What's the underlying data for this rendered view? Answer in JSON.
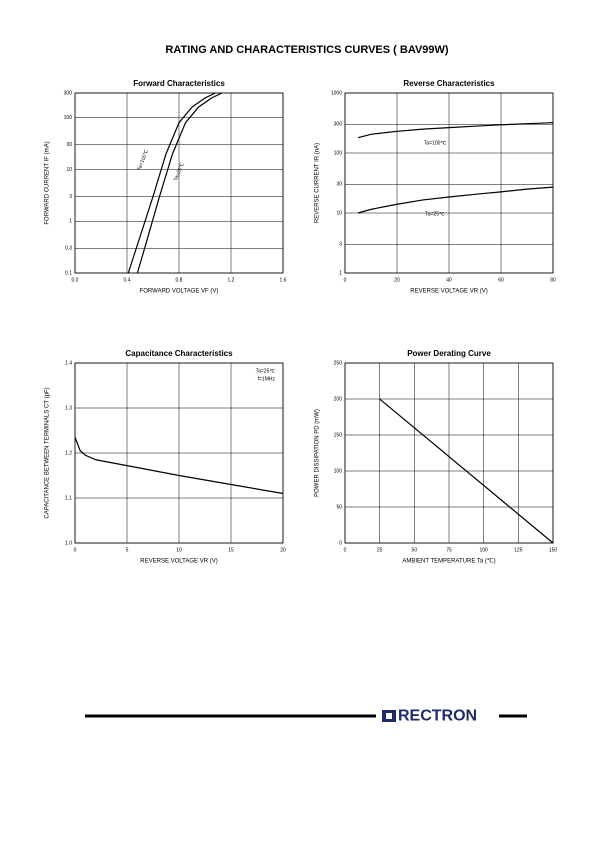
{
  "title": "RATING AND CHARACTERISTICS CURVES ( BAV99W)",
  "footer": {
    "brand": "RECTRON"
  },
  "chart_data": [
    {
      "type": "line",
      "title": "Forward    Characteristics",
      "xlabel": "FORWARD VOLTAGE    VF    (V)",
      "ylabel": "FORWARD CURRENT    IF    (mA)",
      "xlim": [
        0,
        1.6
      ],
      "ylim": [
        0.1,
        300
      ],
      "yscale": "log",
      "grid": true,
      "xticks": [
        {
          "value": 0,
          "label": "0.0"
        },
        0.4,
        0.8,
        1.2,
        1.6
      ],
      "yticks": [
        0.1,
        0.3,
        1,
        3,
        10,
        30,
        100,
        300
      ],
      "series": [
        {
          "name": "Ta=100℃",
          "color": "#000000",
          "x": [
            0.41,
            0.5,
            0.6,
            0.7,
            0.8,
            0.9,
            1.0,
            1.08
          ],
          "values": [
            0.1,
            0.5,
            3,
            20,
            80,
            160,
            240,
            300
          ]
        },
        {
          "name": "Ta=25℃",
          "color": "#000000",
          "x": [
            0.48,
            0.55,
            0.65,
            0.75,
            0.85,
            0.95,
            1.05,
            1.13
          ],
          "values": [
            0.1,
            0.4,
            3,
            20,
            80,
            160,
            240,
            300
          ]
        }
      ]
    },
    {
      "type": "line",
      "title": "Reverse    Characteristics",
      "xlabel": "REVERSE VOLTAGE    VR    (V)",
      "ylabel": "REVERSE CURRENT    IR    (nA)",
      "xlim": [
        0,
        80
      ],
      "ylim": [
        1,
        1000
      ],
      "yscale": "log",
      "grid": true,
      "xticks": [
        0,
        20,
        40,
        60,
        80
      ],
      "yticks": [
        1,
        3,
        10,
        30,
        100,
        300,
        1000
      ],
      "series": [
        {
          "name": "Ta=100℃",
          "color": "#000000",
          "x": [
            5,
            10,
            20,
            30,
            40,
            50,
            60,
            70,
            80
          ],
          "values": [
            180,
            205,
            230,
            250,
            265,
            280,
            295,
            308,
            320
          ]
        },
        {
          "name": "Ta=25℃",
          "color": "#000000",
          "x": [
            5,
            10,
            20,
            30,
            40,
            50,
            60,
            70,
            80
          ],
          "values": [
            10,
            11.5,
            14,
            16.5,
            18.5,
            20.5,
            22.5,
            25,
            27
          ]
        }
      ]
    },
    {
      "type": "line",
      "title": "Capacitance Characteristics",
      "xlabel": "REVERSE VOLTAGE    VR    (V)",
      "ylabel": "CAPACITANCE BETWEEN TERMINALS  CT  (pF)",
      "xlim": [
        0,
        20
      ],
      "ylim": [
        1.0,
        1.4
      ],
      "grid": true,
      "xticks": [
        0,
        5,
        10,
        15,
        20
      ],
      "yticks": [
        {
          "value": 1.0,
          "label": "1.0"
        },
        1.1,
        1.2,
        1.3,
        1.4
      ],
      "annotations": [
        "Ta=25℃",
        "f=1MHz"
      ],
      "series": [
        {
          "color": "#000000",
          "x": [
            0,
            0.5,
            1,
            2,
            5,
            10,
            15,
            20
          ],
          "values": [
            1.235,
            1.205,
            1.195,
            1.185,
            1.172,
            1.15,
            1.13,
            1.11
          ]
        }
      ]
    },
    {
      "type": "line",
      "title": "Power Derating Curve",
      "xlabel": "AMBIENT TEMPERATURE    Ta    (℃)",
      "ylabel": "POWER DISSIPATION    PD    (mW)",
      "xlim": [
        0,
        150
      ],
      "ylim": [
        0,
        250
      ],
      "grid": true,
      "xticks": [
        0,
        25,
        50,
        75,
        100,
        125,
        150
      ],
      "yticks": [
        0,
        50,
        100,
        150,
        200,
        250
      ],
      "series": [
        {
          "color": "#000000",
          "x": [
            25,
            150
          ],
          "values": [
            200,
            0
          ]
        }
      ]
    }
  ]
}
